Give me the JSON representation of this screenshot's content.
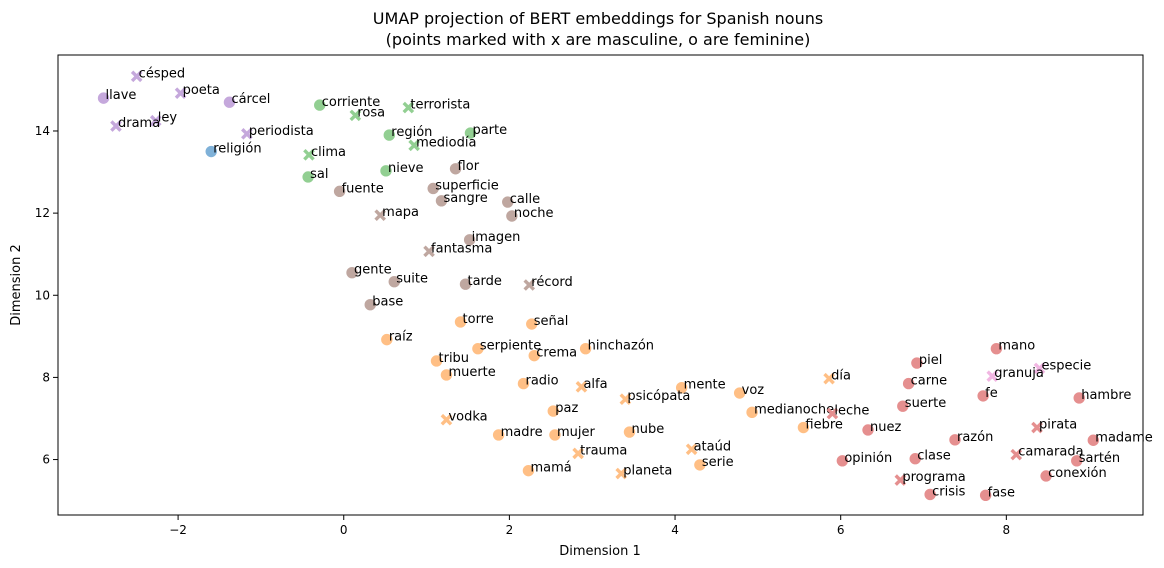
{
  "chart_data": {
    "type": "scatter",
    "title": [
      "UMAP projection of BERT embeddings for Spanish nouns",
      "(points marked with x are masculine, o are feminine)"
    ],
    "xlabel": "Dimension 1",
    "ylabel": "Dimension 2",
    "xlim": [
      -3.45,
      9.65
    ],
    "ylim": [
      4.65,
      15.85
    ],
    "xticks": [
      -2,
      0,
      2,
      4,
      6,
      8
    ],
    "yticks": [
      6,
      8,
      10,
      12,
      14
    ],
    "grid": false,
    "marker_key": {
      "x": "masculine",
      "o": "feminine"
    },
    "colors": {
      "purple": "#c5a8dc",
      "blue": "#7fb1d8",
      "green": "#92cf92",
      "brown": "#bfa7a0",
      "orange": "#ffbf85",
      "red": "#e58f8f",
      "pink": "#f1b6e2"
    },
    "points": [
      {
        "label": "césped",
        "x": -2.5,
        "y": 15.33,
        "marker": "x",
        "color": "purple"
      },
      {
        "label": "poeta",
        "x": -1.97,
        "y": 14.92,
        "marker": "x",
        "color": "purple"
      },
      {
        "label": "llave",
        "x": -2.9,
        "y": 14.8,
        "marker": "o",
        "color": "purple"
      },
      {
        "label": "cárcel",
        "x": -1.38,
        "y": 14.7,
        "marker": "o",
        "color": "purple"
      },
      {
        "label": "ley",
        "x": -2.27,
        "y": 14.25,
        "marker": "x",
        "color": "purple"
      },
      {
        "label": "drama",
        "x": -2.75,
        "y": 14.12,
        "marker": "x",
        "color": "purple"
      },
      {
        "label": "periodista",
        "x": -1.17,
        "y": 13.93,
        "marker": "x",
        "color": "purple"
      },
      {
        "label": "religión",
        "x": -1.6,
        "y": 13.5,
        "marker": "o",
        "color": "blue"
      },
      {
        "label": "corriente",
        "x": -0.29,
        "y": 14.63,
        "marker": "o",
        "color": "green"
      },
      {
        "label": "terrorista",
        "x": 0.78,
        "y": 14.57,
        "marker": "x",
        "color": "green"
      },
      {
        "label": "rosa",
        "x": 0.14,
        "y": 14.38,
        "marker": "x",
        "color": "green"
      },
      {
        "label": "región",
        "x": 0.55,
        "y": 13.9,
        "marker": "o",
        "color": "green"
      },
      {
        "label": "parte",
        "x": 1.53,
        "y": 13.95,
        "marker": "o",
        "color": "green"
      },
      {
        "label": "mediodía",
        "x": 0.85,
        "y": 13.65,
        "marker": "x",
        "color": "green"
      },
      {
        "label": "clima",
        "x": -0.42,
        "y": 13.42,
        "marker": "x",
        "color": "green"
      },
      {
        "label": "nieve",
        "x": 0.51,
        "y": 13.03,
        "marker": "o",
        "color": "green"
      },
      {
        "label": "sal",
        "x": -0.43,
        "y": 12.88,
        "marker": "o",
        "color": "green"
      },
      {
        "label": "flor",
        "x": 1.35,
        "y": 13.08,
        "marker": "o",
        "color": "brown"
      },
      {
        "label": "superficie",
        "x": 1.08,
        "y": 12.6,
        "marker": "o",
        "color": "brown"
      },
      {
        "label": "fuente",
        "x": -0.05,
        "y": 12.53,
        "marker": "o",
        "color": "brown"
      },
      {
        "label": "sangre",
        "x": 1.18,
        "y": 12.3,
        "marker": "o",
        "color": "brown"
      },
      {
        "label": "calle",
        "x": 1.98,
        "y": 12.27,
        "marker": "o",
        "color": "brown"
      },
      {
        "label": "noche",
        "x": 2.03,
        "y": 11.93,
        "marker": "o",
        "color": "brown"
      },
      {
        "label": "mapa",
        "x": 0.44,
        "y": 11.95,
        "marker": "x",
        "color": "brown"
      },
      {
        "label": "imagen",
        "x": 1.52,
        "y": 11.35,
        "marker": "o",
        "color": "brown"
      },
      {
        "label": "fantasma",
        "x": 1.03,
        "y": 11.07,
        "marker": "x",
        "color": "brown"
      },
      {
        "label": "gente",
        "x": 0.1,
        "y": 10.55,
        "marker": "o",
        "color": "brown"
      },
      {
        "label": "suite",
        "x": 0.61,
        "y": 10.33,
        "marker": "o",
        "color": "brown"
      },
      {
        "label": "tarde",
        "x": 1.47,
        "y": 10.27,
        "marker": "o",
        "color": "brown"
      },
      {
        "label": "récord",
        "x": 2.24,
        "y": 10.25,
        "marker": "x",
        "color": "brown"
      },
      {
        "label": "base",
        "x": 0.32,
        "y": 9.77,
        "marker": "o",
        "color": "brown"
      },
      {
        "label": "torre",
        "x": 1.41,
        "y": 9.35,
        "marker": "o",
        "color": "orange"
      },
      {
        "label": "señal",
        "x": 2.27,
        "y": 9.3,
        "marker": "o",
        "color": "orange"
      },
      {
        "label": "raíz",
        "x": 0.52,
        "y": 8.92,
        "marker": "o",
        "color": "orange"
      },
      {
        "label": "serpiente",
        "x": 1.62,
        "y": 8.7,
        "marker": "o",
        "color": "orange"
      },
      {
        "label": "hinchazón",
        "x": 2.92,
        "y": 8.7,
        "marker": "o",
        "color": "orange"
      },
      {
        "label": "crema",
        "x": 2.3,
        "y": 8.53,
        "marker": "o",
        "color": "orange"
      },
      {
        "label": "tribu",
        "x": 1.12,
        "y": 8.4,
        "marker": "o",
        "color": "orange"
      },
      {
        "label": "muerte",
        "x": 1.24,
        "y": 8.06,
        "marker": "o",
        "color": "orange"
      },
      {
        "label": "radio",
        "x": 2.17,
        "y": 7.85,
        "marker": "o",
        "color": "orange"
      },
      {
        "label": "alfa",
        "x": 2.87,
        "y": 7.77,
        "marker": "x",
        "color": "orange"
      },
      {
        "label": "mente",
        "x": 4.08,
        "y": 7.75,
        "marker": "o",
        "color": "orange"
      },
      {
        "label": "psicópata",
        "x": 3.4,
        "y": 7.47,
        "marker": "x",
        "color": "orange"
      },
      {
        "label": "voz",
        "x": 4.78,
        "y": 7.62,
        "marker": "o",
        "color": "orange"
      },
      {
        "label": "día",
        "x": 5.86,
        "y": 7.97,
        "marker": "x",
        "color": "orange"
      },
      {
        "label": "paz",
        "x": 2.53,
        "y": 7.18,
        "marker": "o",
        "color": "orange"
      },
      {
        "label": "medianoche",
        "x": 4.93,
        "y": 7.15,
        "marker": "o",
        "color": "orange"
      },
      {
        "label": "vodka",
        "x": 1.24,
        "y": 6.97,
        "marker": "x",
        "color": "orange"
      },
      {
        "label": "fiebre",
        "x": 5.55,
        "y": 6.78,
        "marker": "o",
        "color": "orange"
      },
      {
        "label": "nube",
        "x": 3.45,
        "y": 6.67,
        "marker": "o",
        "color": "orange"
      },
      {
        "label": "madre",
        "x": 1.87,
        "y": 6.6,
        "marker": "o",
        "color": "orange"
      },
      {
        "label": "mujer",
        "x": 2.55,
        "y": 6.6,
        "marker": "o",
        "color": "orange"
      },
      {
        "label": "ataúd",
        "x": 4.2,
        "y": 6.25,
        "marker": "x",
        "color": "orange"
      },
      {
        "label": "trauma",
        "x": 2.83,
        "y": 6.15,
        "marker": "x",
        "color": "orange"
      },
      {
        "label": "serie",
        "x": 4.3,
        "y": 5.87,
        "marker": "o",
        "color": "orange"
      },
      {
        "label": "mamá",
        "x": 2.23,
        "y": 5.73,
        "marker": "o",
        "color": "orange"
      },
      {
        "label": "planeta",
        "x": 3.35,
        "y": 5.66,
        "marker": "x",
        "color": "orange"
      },
      {
        "label": "mano",
        "x": 7.88,
        "y": 8.7,
        "marker": "o",
        "color": "red"
      },
      {
        "label": "piel",
        "x": 6.92,
        "y": 8.35,
        "marker": "o",
        "color": "red"
      },
      {
        "label": "especie",
        "x": 8.4,
        "y": 8.22,
        "marker": "x",
        "color": "pink"
      },
      {
        "label": "granuja",
        "x": 7.83,
        "y": 8.03,
        "marker": "x",
        "color": "pink"
      },
      {
        "label": "carne",
        "x": 6.82,
        "y": 7.85,
        "marker": "o",
        "color": "red"
      },
      {
        "label": "fe",
        "x": 7.72,
        "y": 7.55,
        "marker": "o",
        "color": "red"
      },
      {
        "label": "hambre",
        "x": 8.88,
        "y": 7.5,
        "marker": "o",
        "color": "red"
      },
      {
        "label": "suerte",
        "x": 6.75,
        "y": 7.3,
        "marker": "o",
        "color": "red"
      },
      {
        "label": "leche",
        "x": 5.9,
        "y": 7.12,
        "marker": "x",
        "color": "red"
      },
      {
        "label": "nuez",
        "x": 6.33,
        "y": 6.72,
        "marker": "o",
        "color": "red"
      },
      {
        "label": "pirata",
        "x": 8.37,
        "y": 6.78,
        "marker": "x",
        "color": "red"
      },
      {
        "label": "razón",
        "x": 7.38,
        "y": 6.48,
        "marker": "o",
        "color": "red"
      },
      {
        "label": "madame",
        "x": 9.05,
        "y": 6.47,
        "marker": "o",
        "color": "red"
      },
      {
        "label": "camarada",
        "x": 8.12,
        "y": 6.12,
        "marker": "x",
        "color": "red"
      },
      {
        "label": "clase",
        "x": 6.9,
        "y": 6.02,
        "marker": "o",
        "color": "red"
      },
      {
        "label": "opinión",
        "x": 6.02,
        "y": 5.97,
        "marker": "o",
        "color": "red"
      },
      {
        "label": "sartén",
        "x": 8.85,
        "y": 5.97,
        "marker": "o",
        "color": "red"
      },
      {
        "label": "conexión",
        "x": 8.48,
        "y": 5.6,
        "marker": "o",
        "color": "red"
      },
      {
        "label": "programa",
        "x": 6.72,
        "y": 5.5,
        "marker": "x",
        "color": "red"
      },
      {
        "label": "crisis",
        "x": 7.08,
        "y": 5.15,
        "marker": "o",
        "color": "red"
      },
      {
        "label": "fase",
        "x": 7.75,
        "y": 5.13,
        "marker": "o",
        "color": "red"
      }
    ]
  }
}
